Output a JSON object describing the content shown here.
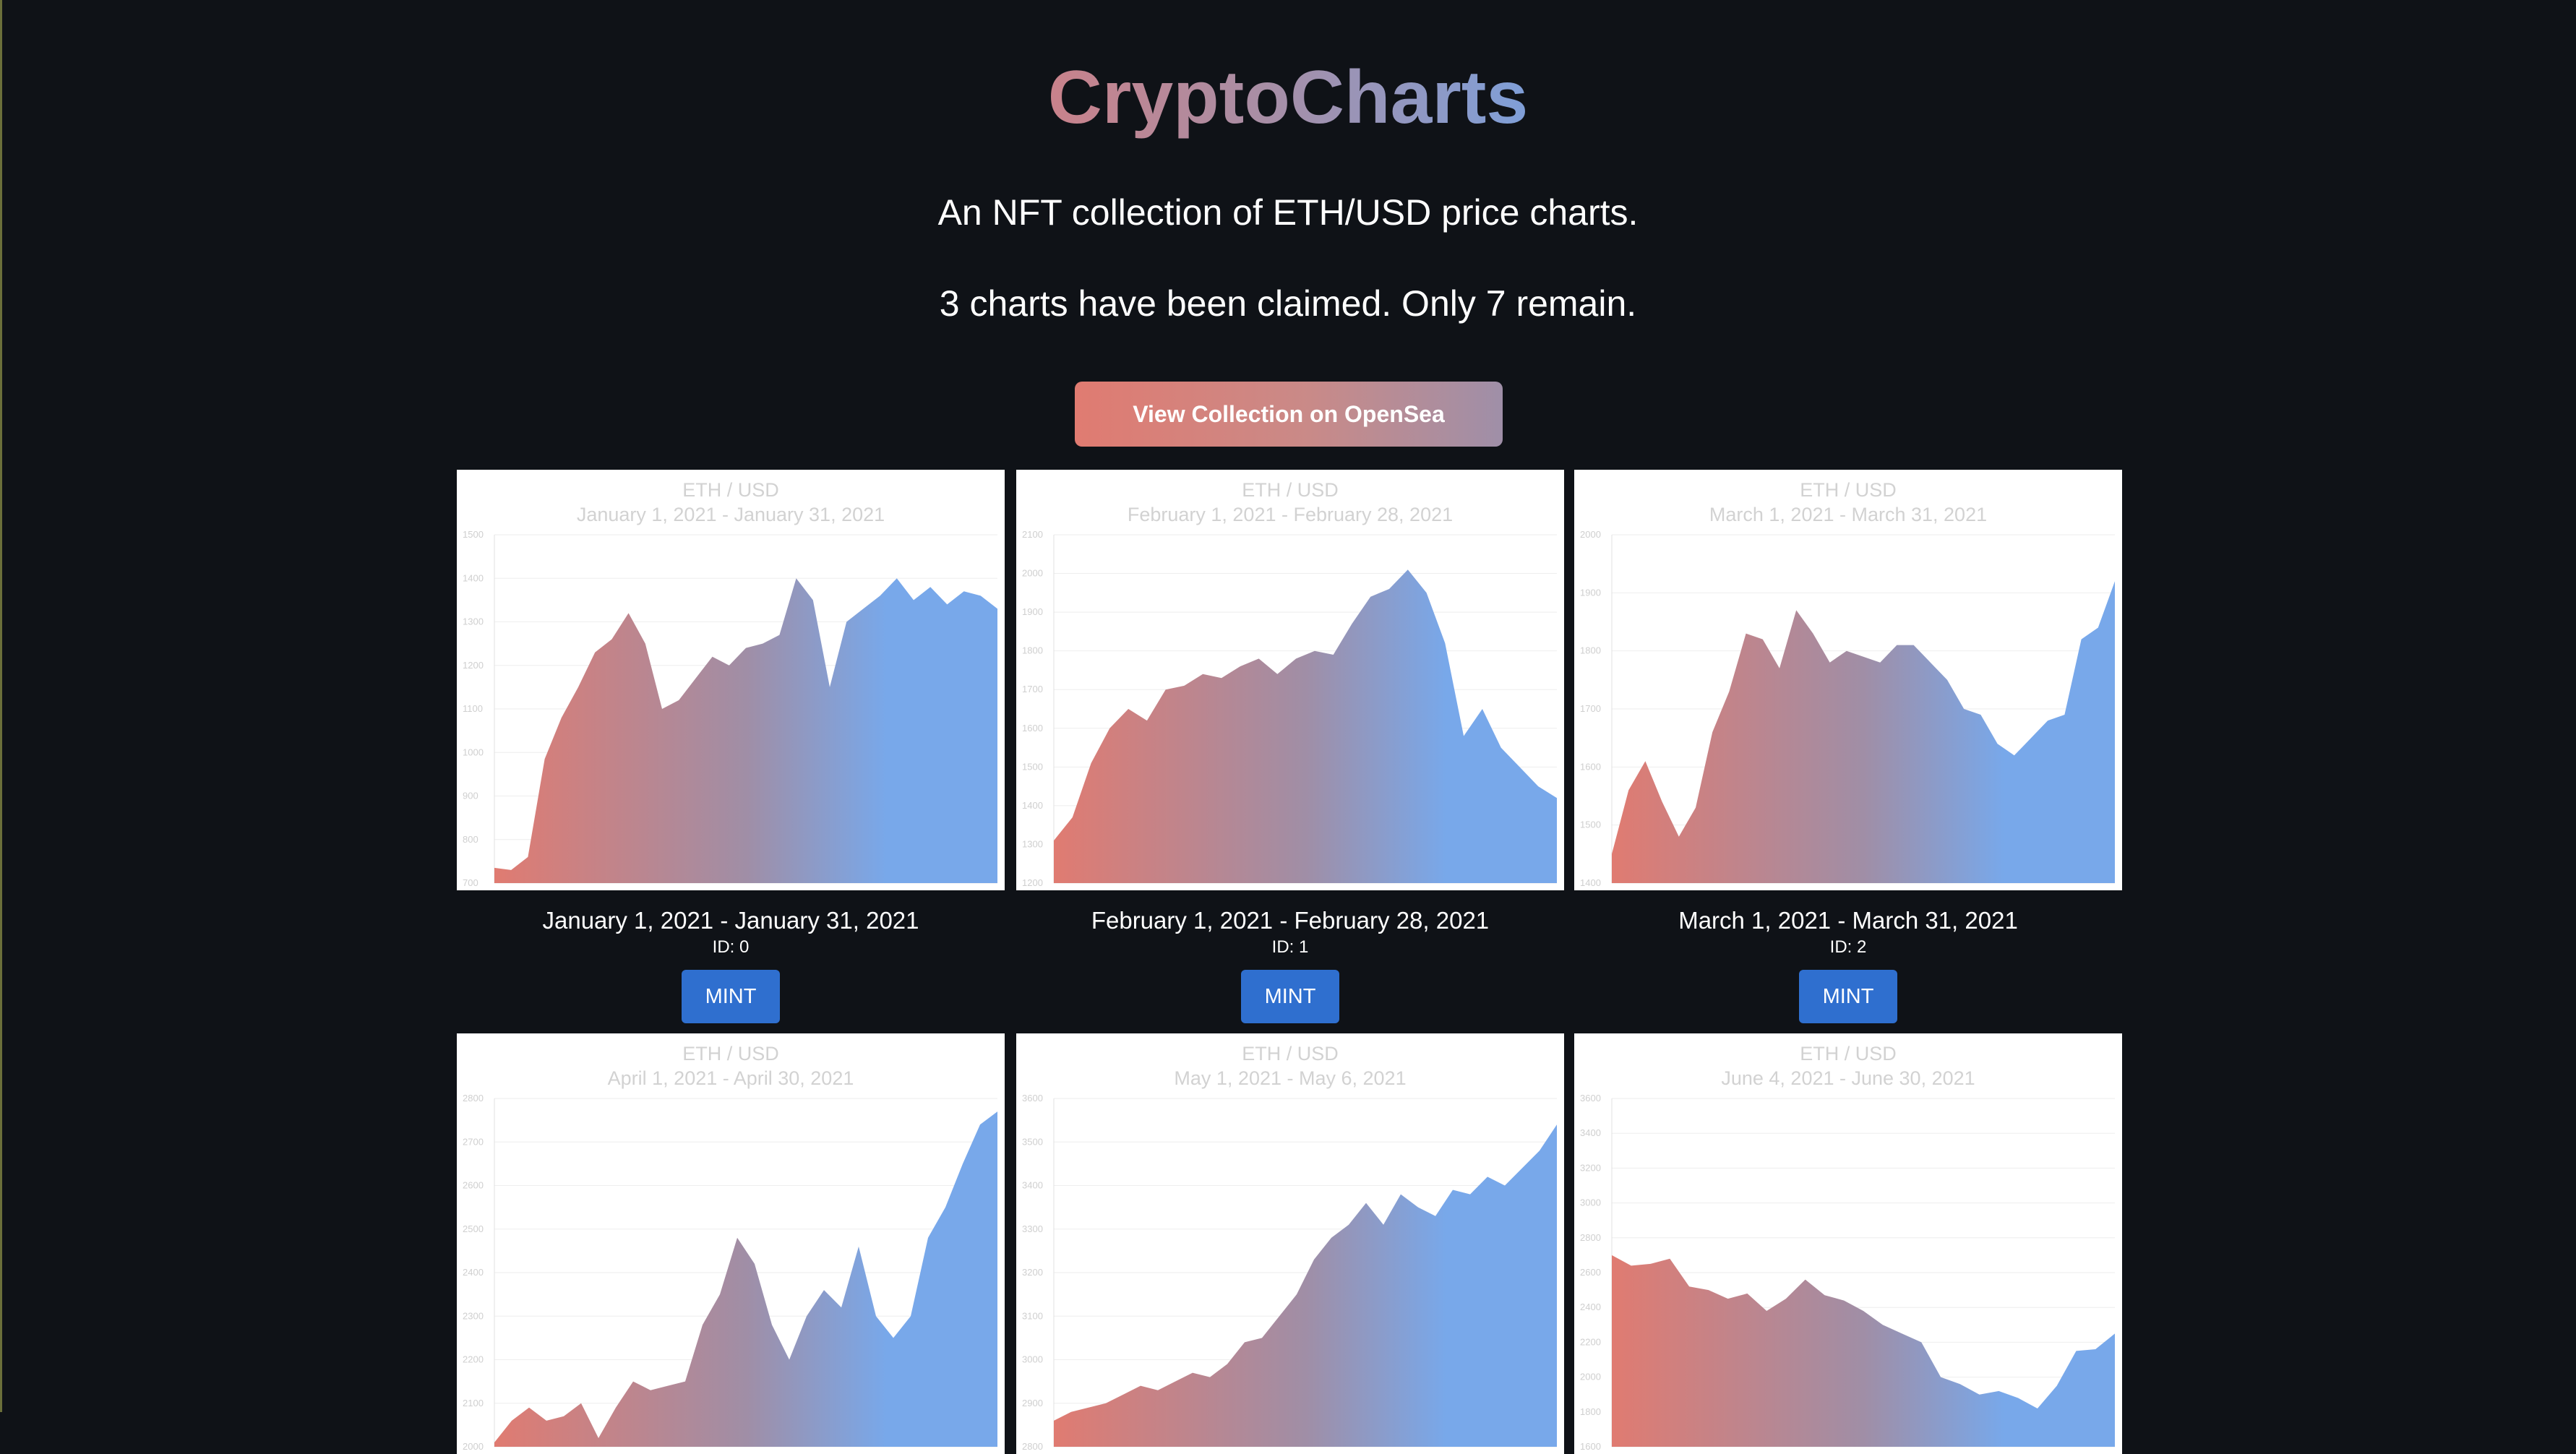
{
  "header": {
    "title": "CryptoCharts",
    "subtitle": "An NFT collection of ETH/USD price charts.",
    "status": "3 charts have been claimed. Only 7 remain.",
    "opensea_button": "View Collection on OpenSea"
  },
  "colors": {
    "background": "#0f1217",
    "gradient_start": "#e07b71",
    "gradient_end": "#78a8ea",
    "mint_button": "#2f6fcf"
  },
  "cards": [
    {
      "chart_title": "ETH / USD",
      "chart_range": "January 1, 2021 - January 31, 2021",
      "range_label": "January 1, 2021 - January 31, 2021",
      "id_label": "ID: 0",
      "mint_label": "MINT"
    },
    {
      "chart_title": "ETH / USD",
      "chart_range": "February 1, 2021 - February 28, 2021",
      "range_label": "February 1, 2021 - February 28, 2021",
      "id_label": "ID: 1",
      "mint_label": "MINT"
    },
    {
      "chart_title": "ETH / USD",
      "chart_range": "March 1, 2021 - March 31, 2021",
      "range_label": "March 1, 2021 - March 31, 2021",
      "id_label": "ID: 2",
      "mint_label": "MINT"
    },
    {
      "chart_title": "ETH / USD",
      "chart_range": "April 1, 2021 - April 30, 2021"
    },
    {
      "chart_title": "ETH / USD",
      "chart_range": "May 1, 2021 - May 6, 2021"
    },
    {
      "chart_title": "ETH / USD",
      "chart_range": "June 4, 2021 - June 30, 2021"
    }
  ],
  "chart_data": [
    {
      "type": "area",
      "title": "ETH / USD",
      "subtitle": "January 1, 2021 - January 31, 2021",
      "ylim": [
        700,
        1500
      ],
      "yticks": [
        700,
        800,
        900,
        1000,
        1100,
        1200,
        1300,
        1400,
        1500
      ],
      "x": [
        1,
        2,
        3,
        4,
        5,
        6,
        7,
        8,
        9,
        10,
        11,
        12,
        13,
        14,
        15,
        16,
        17,
        18,
        19,
        20,
        21,
        22,
        23,
        24,
        25,
        26,
        27,
        28,
        29,
        30,
        31
      ],
      "values": [
        735,
        730,
        760,
        985,
        1080,
        1150,
        1230,
        1260,
        1320,
        1250,
        1100,
        1120,
        1170,
        1220,
        1200,
        1240,
        1250,
        1270,
        1400,
        1350,
        1150,
        1300,
        1330,
        1360,
        1400,
        1350,
        1380,
        1340,
        1370,
        1360,
        1330
      ],
      "grid": true
    },
    {
      "type": "area",
      "title": "ETH / USD",
      "subtitle": "February 1, 2021 - February 28, 2021",
      "ylim": [
        1200,
        2100
      ],
      "yticks": [
        1200,
        1300,
        1400,
        1500,
        1600,
        1700,
        1800,
        1900,
        2000,
        2100
      ],
      "x": [
        1,
        2,
        3,
        4,
        5,
        6,
        7,
        8,
        9,
        10,
        11,
        12,
        13,
        14,
        15,
        16,
        17,
        18,
        19,
        20,
        21,
        22,
        23,
        24,
        25,
        26,
        27,
        28
      ],
      "values": [
        1310,
        1370,
        1510,
        1600,
        1650,
        1620,
        1700,
        1710,
        1740,
        1730,
        1760,
        1780,
        1740,
        1780,
        1800,
        1790,
        1870,
        1940,
        1960,
        2010,
        1950,
        1820,
        1580,
        1650,
        1550,
        1500,
        1450,
        1420
      ],
      "grid": true
    },
    {
      "type": "area",
      "title": "ETH / USD",
      "subtitle": "March 1, 2021 - March 31, 2021",
      "ylim": [
        1400,
        2000
      ],
      "yticks": [
        1400,
        1500,
        1600,
        1700,
        1800,
        1900,
        2000
      ],
      "x": [
        1,
        2,
        3,
        4,
        5,
        6,
        7,
        8,
        9,
        10,
        11,
        12,
        13,
        14,
        15,
        16,
        17,
        18,
        19,
        20,
        21,
        22,
        23,
        24,
        25,
        26,
        27,
        28,
        29,
        30,
        31
      ],
      "values": [
        1450,
        1560,
        1610,
        1540,
        1480,
        1530,
        1660,
        1730,
        1830,
        1820,
        1770,
        1870,
        1830,
        1780,
        1800,
        1790,
        1780,
        1810,
        1810,
        1780,
        1750,
        1700,
        1690,
        1640,
        1620,
        1650,
        1680,
        1690,
        1820,
        1840,
        1920
      ],
      "grid": true
    },
    {
      "type": "area",
      "title": "ETH / USD",
      "subtitle": "April 1, 2021 - April 30, 2021",
      "ylim": [
        2000,
        2800
      ],
      "yticks": [
        2000,
        2100,
        2200,
        2300,
        2400,
        2500,
        2600,
        2700,
        2800
      ],
      "x": [
        1,
        2,
        3,
        4,
        5,
        6,
        7,
        8,
        9,
        10,
        11,
        12,
        13,
        14,
        15,
        16,
        17,
        18,
        19,
        20,
        21,
        22,
        23,
        24,
        25,
        26,
        27,
        28,
        29,
        30
      ],
      "values": [
        2010,
        2060,
        2090,
        2060,
        2070,
        2100,
        2020,
        2090,
        2150,
        2130,
        2140,
        2150,
        2280,
        2350,
        2480,
        2420,
        2280,
        2200,
        2300,
        2360,
        2320,
        2460,
        2300,
        2250,
        2300,
        2480,
        2550,
        2650,
        2740,
        2770
      ],
      "grid": true
    },
    {
      "type": "area",
      "title": "ETH / USD",
      "subtitle": "May 1, 2021 - May 6, 2021",
      "ylim": [
        2800,
        3600
      ],
      "yticks": [
        2800,
        2900,
        3000,
        3100,
        3200,
        3300,
        3400,
        3500,
        3600
      ],
      "x": [
        1,
        2,
        3,
        4,
        5,
        6,
        7,
        8,
        9,
        10,
        11,
        12,
        13,
        14,
        15,
        16,
        17,
        18,
        19,
        20,
        21,
        22,
        23,
        24,
        25,
        26,
        27,
        28,
        29,
        30
      ],
      "values": [
        2860,
        2880,
        2890,
        2900,
        2920,
        2940,
        2930,
        2950,
        2970,
        2960,
        2990,
        3040,
        3050,
        3100,
        3150,
        3230,
        3280,
        3310,
        3360,
        3310,
        3380,
        3350,
        3330,
        3390,
        3380,
        3420,
        3400,
        3440,
        3480,
        3540
      ],
      "grid": true
    },
    {
      "type": "area",
      "title": "ETH / USD",
      "subtitle": "June 4, 2021 - June 30, 2021",
      "ylim": [
        1600,
        3600
      ],
      "yticks": [
        1600,
        1800,
        2000,
        2200,
        2400,
        2600,
        2800,
        3000,
        3200,
        3400,
        3600
      ],
      "x": [
        1,
        2,
        3,
        4,
        5,
        6,
        7,
        8,
        9,
        10,
        11,
        12,
        13,
        14,
        15,
        16,
        17,
        18,
        19,
        20,
        21,
        22,
        23,
        24,
        25,
        26,
        27
      ],
      "values": [
        2700,
        2640,
        2650,
        2680,
        2520,
        2500,
        2450,
        2480,
        2380,
        2450,
        2560,
        2470,
        2440,
        2380,
        2300,
        2250,
        2200,
        2000,
        1960,
        1900,
        1920,
        1880,
        1820,
        1950,
        2150,
        2160,
        2250
      ],
      "grid": true
    }
  ]
}
